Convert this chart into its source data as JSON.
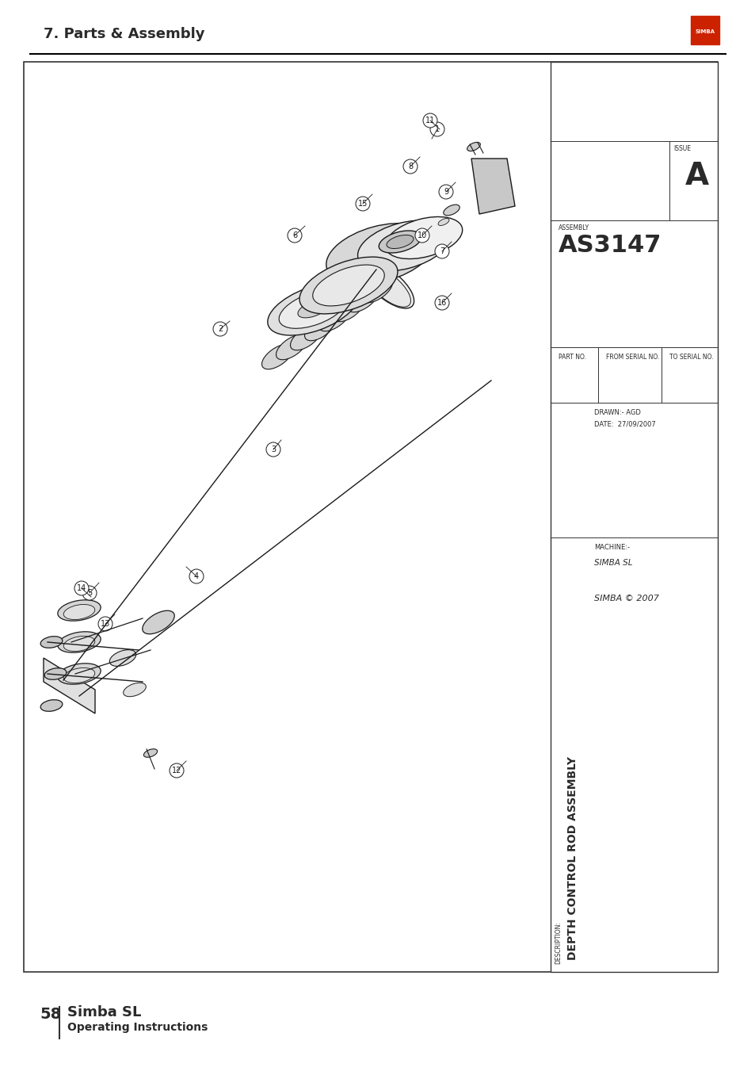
{
  "page_title": "7. Parts & Assembly",
  "page_number": "58",
  "book_title": "Simba SL",
  "book_subtitle": "Operating Instructions",
  "drawing_title": "DEPTH CONTROL ROD ASSEMBLY",
  "assembly_no": "AS3147",
  "issue": "A",
  "machine": "SIMBA SL",
  "drawn_by": "AGD",
  "date": "27/09/2007",
  "copyright": "SIMBA © 2007",
  "bg_color": "#ffffff",
  "border_color": "#000000",
  "text_color": "#2a2a2a",
  "header_line_color": "#000000",
  "logo_color": "#cc2200"
}
